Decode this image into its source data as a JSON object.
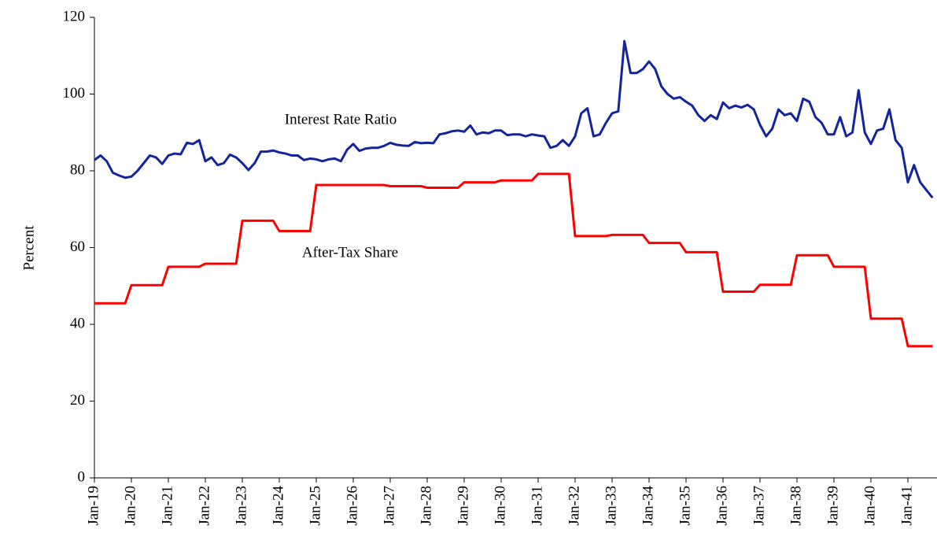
{
  "chart_data": {
    "type": "line",
    "y_label": "Percent",
    "categories": [
      "Jan-19",
      null,
      null,
      null,
      null,
      null,
      "Jan-20",
      null,
      null,
      null,
      null,
      null,
      "Jan-21",
      null,
      null,
      null,
      null,
      null,
      "Jan-22",
      null,
      null,
      null,
      null,
      null,
      "Jan-23",
      null,
      null,
      null,
      null,
      null,
      "Jan-24",
      null,
      null,
      null,
      null,
      null,
      "Jan-25",
      null,
      null,
      null,
      null,
      null,
      "Jan-26",
      null,
      null,
      null,
      null,
      null,
      "Jan-27",
      null,
      null,
      null,
      null,
      null,
      "Jan-28",
      null,
      null,
      null,
      null,
      null,
      "Jan-29",
      null,
      null,
      null,
      null,
      null,
      "Jan-30",
      null,
      null,
      null,
      null,
      null,
      "Jan-31",
      null,
      null,
      null,
      null,
      null,
      "Jan-32",
      null,
      null,
      null,
      null,
      null,
      "Jan-33",
      null,
      null,
      null,
      null,
      null,
      "Jan-34",
      null,
      null,
      null,
      null,
      null,
      "Jan-35",
      null,
      null,
      null,
      null,
      null,
      "Jan-36",
      null,
      null,
      null,
      null,
      null,
      "Jan-37",
      null,
      null,
      null,
      null,
      null,
      "Jan-38",
      null,
      null,
      null,
      null,
      null,
      "Jan-39",
      null,
      null,
      null,
      null,
      null,
      "Jan-40",
      null,
      null,
      null,
      null,
      null,
      "Jan-41",
      null,
      null,
      null,
      null
    ],
    "series": [
      {
        "name": "Interest Rate Ratio",
        "color": "#14249a",
        "values": [
          82.8,
          84,
          82.5,
          79.5,
          78.8,
          78.2,
          78.5,
          80,
          82,
          84,
          83.5,
          81.8,
          84,
          84.5,
          84.3,
          87.3,
          87,
          88,
          82.5,
          83.5,
          81.5,
          82,
          84.2,
          83.5,
          82,
          80.2,
          82,
          85,
          85,
          85.3,
          84.8,
          84.5,
          84,
          84,
          82.8,
          83.2,
          83,
          82.5,
          83,
          83.2,
          82.5,
          85.5,
          87,
          85.2,
          85.8,
          86,
          86,
          86.5,
          87.3,
          86.8,
          86.6,
          86.5,
          87.5,
          87.2,
          87.3,
          87.2,
          89.5,
          89.8,
          90.3,
          90.5,
          90.2,
          91.8,
          89.5,
          90,
          89.8,
          90.5,
          90.5,
          89.3,
          89.5,
          89.5,
          89,
          89.5,
          89.2,
          89,
          86,
          86.5,
          88,
          86.5,
          89,
          95,
          96.3,
          89,
          89.5,
          92.5,
          95,
          95.5,
          113.8,
          105.5,
          105.5,
          106.5,
          108.5,
          106.5,
          102,
          100,
          98.8,
          99.2,
          98,
          97,
          94.5,
          93,
          94.5,
          93.5,
          97.8,
          96.3,
          97,
          96.5,
          97.2,
          96,
          92,
          89,
          91,
          96,
          94.5,
          95,
          93,
          98.8,
          98,
          94,
          92.5,
          89.5,
          89.5,
          94,
          89,
          90,
          101,
          90,
          87,
          90.5,
          91,
          96,
          88,
          86,
          77,
          81.5,
          77,
          75,
          73
        ]
      },
      {
        "name": "After-Tax Share",
        "color": "#ff0000",
        "values": [
          45.5,
          45.5,
          45.5,
          45.5,
          45.5,
          45.5,
          50.2,
          50.2,
          50.2,
          50.2,
          50.2,
          50.2,
          55,
          55,
          55,
          55,
          55,
          55,
          55.8,
          55.8,
          55.8,
          55.8,
          55.8,
          55.8,
          67,
          67,
          67,
          67,
          67,
          67,
          64.3,
          64.3,
          64.3,
          64.3,
          64.3,
          64.3,
          76.3,
          76.3,
          76.3,
          76.3,
          76.3,
          76.3,
          76.3,
          76.3,
          76.3,
          76.3,
          76.3,
          76.3,
          76,
          76,
          76,
          76,
          76,
          76,
          75.6,
          75.6,
          75.6,
          75.6,
          75.6,
          75.6,
          77,
          77,
          77,
          77,
          77,
          77,
          77.5,
          77.5,
          77.5,
          77.5,
          77.5,
          77.5,
          79.2,
          79.2,
          79.2,
          79.2,
          79.2,
          79.2,
          63,
          63,
          63,
          63,
          63,
          63,
          63.3,
          63.3,
          63.3,
          63.3,
          63.3,
          63.3,
          61.2,
          61.2,
          61.2,
          61.2,
          61.2,
          61.2,
          58.8,
          58.8,
          58.8,
          58.8,
          58.8,
          58.8,
          48.5,
          48.5,
          48.5,
          48.5,
          48.5,
          48.5,
          50.3,
          50.3,
          50.3,
          50.3,
          50.3,
          50.3,
          58,
          58,
          58,
          58,
          58,
          58,
          55,
          55,
          55,
          55,
          55,
          55,
          41.5,
          41.5,
          41.5,
          41.5,
          41.5,
          41.5,
          34.3,
          34.3,
          34.3,
          34.3,
          34.3
        ]
      }
    ],
    "ylim": [
      0,
      120
    ],
    "yticks": [
      0,
      20,
      40,
      60,
      80,
      100,
      120
    ]
  }
}
